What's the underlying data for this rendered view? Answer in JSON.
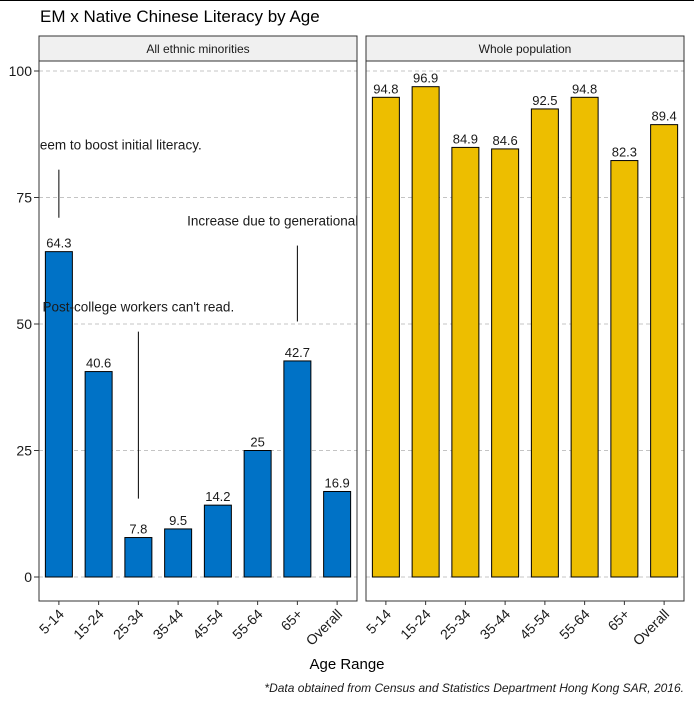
{
  "title": "EM x Native Chinese Literacy by Age",
  "xlabel": "Age Range",
  "caption": "*Data obtained from Census and Statistics Department Hong Kong SAR, 2016.",
  "chart_data": {
    "type": "bar",
    "title": "EM x Native Chinese Literacy by Age",
    "xlabel": "Age Range",
    "ylabel": "",
    "ylim": [
      0,
      100
    ],
    "yticks": [
      0,
      25,
      50,
      75,
      100
    ],
    "grid": "horizontal dashed",
    "categories": [
      "5-14",
      "15-24",
      "25-34",
      "35-44",
      "45-54",
      "55-64",
      "65+",
      "Overall"
    ],
    "panels": [
      {
        "strip": "All ethnic minorities",
        "color": "#0072C6",
        "values": [
          64.3,
          40.6,
          7.8,
          9.5,
          14.2,
          25,
          42.7,
          16.9
        ],
        "labels": [
          "64.3",
          "40.6",
          "7.8",
          "9.5",
          "14.2",
          "25",
          "42.7",
          "16.9"
        ],
        "annotations": [
          {
            "text": "Initial age supports seem to boost initial literacy.",
            "category": "5-14",
            "y": 84.5,
            "line_from": 80.5,
            "line_to": 71
          },
          {
            "text": "Increase due to generational literacy.",
            "category": "65+",
            "y": 69.5,
            "line_from": 65.5,
            "line_to": 50.5
          },
          {
            "text": "Post-college workers can't read.",
            "category": "25-34",
            "y": 52.5,
            "line_from": 48.5,
            "line_to": 15.5
          }
        ]
      },
      {
        "strip": "Whole population",
        "color": "#EDBE00",
        "values": [
          94.8,
          96.9,
          84.9,
          84.6,
          92.5,
          94.8,
          82.3,
          89.4
        ],
        "labels": [
          "94.8",
          "96.9",
          "84.9",
          "84.6",
          "92.5",
          "94.8",
          "82.3",
          "89.4"
        ],
        "annotations": []
      }
    ]
  }
}
